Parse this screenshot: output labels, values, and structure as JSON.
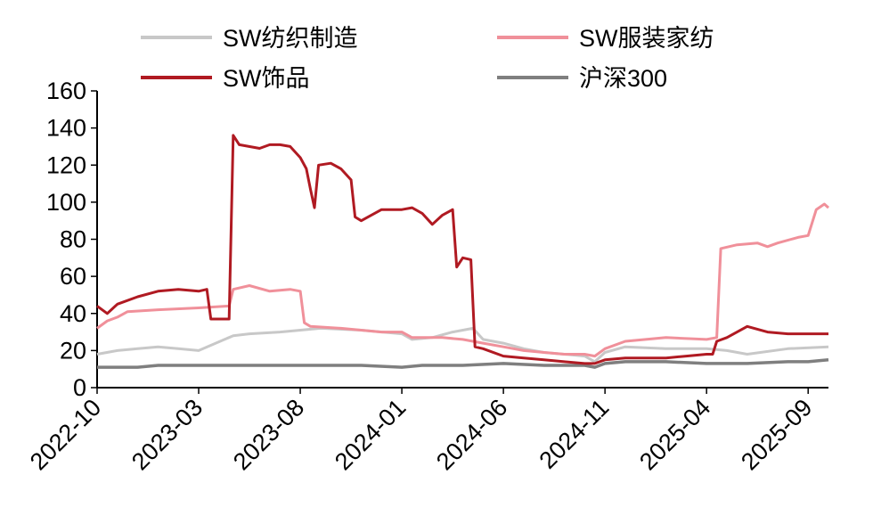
{
  "chart_data": {
    "type": "line",
    "title": "",
    "xlabel": "",
    "ylabel": "",
    "ylim": [
      0,
      160
    ],
    "yticks": [
      0,
      20,
      40,
      60,
      80,
      100,
      120,
      140,
      160
    ],
    "ytick_labels": [
      "0",
      "20",
      "40",
      "60",
      "80",
      "100",
      "120",
      "140",
      "160"
    ],
    "x_range": [
      0,
      36
    ],
    "xticks": [
      {
        "label": "2022-10",
        "x": 0
      },
      {
        "label": "2023-03",
        "x": 5
      },
      {
        "label": "2023-08",
        "x": 10
      },
      {
        "label": "2024-01",
        "x": 15
      },
      {
        "label": "2024-06",
        "x": 20
      },
      {
        "label": "2024-11",
        "x": 25
      },
      {
        "label": "2025-04",
        "x": 30
      },
      {
        "label": "2025-09",
        "x": 35
      }
    ],
    "legend_position": "top",
    "series": [
      {
        "name": "SW纺织制造",
        "color": "#c8c8c8",
        "points": [
          [
            0,
            18
          ],
          [
            1,
            20
          ],
          [
            2,
            21
          ],
          [
            3,
            22
          ],
          [
            4,
            21
          ],
          [
            5,
            20
          ],
          [
            6.7,
            28
          ],
          [
            7.5,
            29
          ],
          [
            9,
            30
          ],
          [
            10,
            31
          ],
          [
            11,
            32
          ],
          [
            13,
            31
          ],
          [
            15,
            29
          ],
          [
            15.5,
            26
          ],
          [
            16.5,
            27
          ],
          [
            17.5,
            30
          ],
          [
            18.5,
            32
          ],
          [
            19,
            26
          ],
          [
            20,
            24
          ],
          [
            21,
            21
          ],
          [
            22,
            19
          ],
          [
            23,
            18
          ],
          [
            24,
            17
          ],
          [
            24.5,
            14
          ],
          [
            25,
            19
          ],
          [
            26,
            22
          ],
          [
            28,
            21
          ],
          [
            30,
            21
          ],
          [
            31,
            20
          ],
          [
            32,
            18
          ],
          [
            34,
            21
          ],
          [
            36,
            22
          ]
        ]
      },
      {
        "name": "SW服装家纺",
        "color": "#f0909a",
        "points": [
          [
            0,
            32
          ],
          [
            0.5,
            36
          ],
          [
            1,
            38
          ],
          [
            1.5,
            41
          ],
          [
            3,
            42
          ],
          [
            5,
            43
          ],
          [
            6.5,
            44
          ],
          [
            6.7,
            53
          ],
          [
            7.5,
            55
          ],
          [
            8.5,
            52
          ],
          [
            9.5,
            53
          ],
          [
            10,
            52
          ],
          [
            10.2,
            35
          ],
          [
            10.5,
            33
          ],
          [
            12,
            32
          ],
          [
            14,
            30
          ],
          [
            15,
            30
          ],
          [
            15.5,
            27
          ],
          [
            17,
            27
          ],
          [
            18,
            26
          ],
          [
            18.5,
            25
          ],
          [
            19,
            24
          ],
          [
            20,
            22
          ],
          [
            21,
            20
          ],
          [
            22,
            19
          ],
          [
            23,
            18
          ],
          [
            24,
            18
          ],
          [
            24.5,
            17
          ],
          [
            25,
            21
          ],
          [
            26,
            25
          ],
          [
            27,
            26
          ],
          [
            28,
            27
          ],
          [
            30,
            26
          ],
          [
            30.5,
            27
          ],
          [
            30.7,
            75
          ],
          [
            31.5,
            77
          ],
          [
            32.5,
            78
          ],
          [
            33,
            76
          ],
          [
            33.5,
            78
          ],
          [
            34.5,
            81
          ],
          [
            35,
            82
          ],
          [
            35.4,
            96
          ],
          [
            35.8,
            99
          ],
          [
            36,
            97
          ]
        ]
      },
      {
        "name": "SW饰品",
        "color": "#b01a22",
        "points": [
          [
            0,
            44
          ],
          [
            0.5,
            40
          ],
          [
            1,
            45
          ],
          [
            2,
            49
          ],
          [
            3,
            52
          ],
          [
            4,
            53
          ],
          [
            5,
            52
          ],
          [
            5.4,
            53
          ],
          [
            5.6,
            37
          ],
          [
            6.5,
            37
          ],
          [
            6.7,
            136
          ],
          [
            7,
            131
          ],
          [
            8,
            129
          ],
          [
            8.5,
            131
          ],
          [
            9,
            131
          ],
          [
            9.5,
            130
          ],
          [
            10,
            124
          ],
          [
            10.3,
            118
          ],
          [
            10.5,
            107
          ],
          [
            10.7,
            97
          ],
          [
            10.9,
            120
          ],
          [
            11.5,
            121
          ],
          [
            12,
            118
          ],
          [
            12.5,
            112
          ],
          [
            12.7,
            92
          ],
          [
            13,
            90
          ],
          [
            13.5,
            93
          ],
          [
            14,
            96
          ],
          [
            15,
            96
          ],
          [
            15.5,
            97
          ],
          [
            16,
            94
          ],
          [
            16.5,
            88
          ],
          [
            17,
            93
          ],
          [
            17.5,
            96
          ],
          [
            17.7,
            65
          ],
          [
            18,
            70
          ],
          [
            18.4,
            69
          ],
          [
            18.6,
            22
          ],
          [
            19,
            21
          ],
          [
            20,
            17
          ],
          [
            21,
            16
          ],
          [
            22,
            15
          ],
          [
            23,
            14
          ],
          [
            24,
            13
          ],
          [
            24.5,
            13
          ],
          [
            25,
            15
          ],
          [
            26,
            16
          ],
          [
            27,
            16
          ],
          [
            28,
            16
          ],
          [
            29,
            17
          ],
          [
            30,
            18
          ],
          [
            30.3,
            18
          ],
          [
            30.5,
            25
          ],
          [
            31,
            27
          ],
          [
            31.5,
            30
          ],
          [
            32,
            33
          ],
          [
            33,
            30
          ],
          [
            34,
            29
          ],
          [
            35,
            29
          ],
          [
            36,
            29
          ]
        ]
      },
      {
        "name": "沪深300",
        "color": "#7f7f7f",
        "points": [
          [
            0,
            11
          ],
          [
            1,
            11
          ],
          [
            2,
            11
          ],
          [
            3,
            12
          ],
          [
            5,
            12
          ],
          [
            7,
            12
          ],
          [
            9,
            12
          ],
          [
            11,
            12
          ],
          [
            13,
            12
          ],
          [
            15,
            11
          ],
          [
            16,
            12
          ],
          [
            18,
            12
          ],
          [
            20,
            13
          ],
          [
            22,
            12
          ],
          [
            24,
            12
          ],
          [
            24.5,
            11
          ],
          [
            25,
            13
          ],
          [
            26,
            14
          ],
          [
            28,
            14
          ],
          [
            30,
            13
          ],
          [
            32,
            13
          ],
          [
            34,
            14
          ],
          [
            35,
            14
          ],
          [
            36,
            15
          ]
        ]
      }
    ]
  }
}
